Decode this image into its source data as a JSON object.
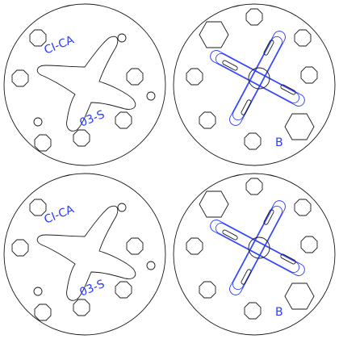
{
  "drawings": [
    {
      "kind": "stamp",
      "top_label": "CI-CA",
      "bottom_label": "03-S"
    },
    {
      "kind": "mask",
      "label": "B"
    },
    {
      "kind": "stamp",
      "top_label": "CI-CA",
      "bottom_label": "03-S"
    },
    {
      "kind": "mask",
      "label": "B"
    }
  ],
  "colors": {
    "outline": "#1a1a1a",
    "accent": "#2a3cff",
    "background": "#ffffff"
  }
}
